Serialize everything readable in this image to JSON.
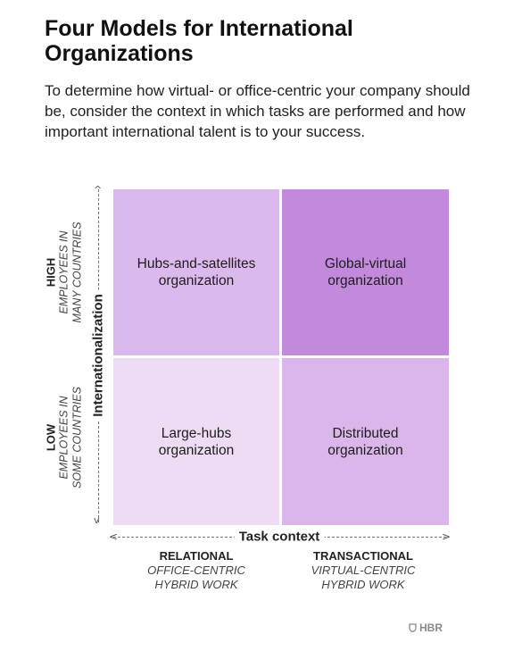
{
  "title": "Four Models for International Organizations",
  "subtitle": "To determine how virtual- or office-centric your company should be, consider the context in which tasks are performed and how important international talent is to your success.",
  "y_axis": {
    "title": "Internationalization",
    "high": {
      "head": "HIGH",
      "line1": "EMPLOYEES IN",
      "line2": "MANY COUNTRIES"
    },
    "low": {
      "head": "LOW",
      "line1": "EMPLOYEES IN",
      "line2": "SOME COUNTRIES"
    }
  },
  "x_axis": {
    "title": "Task context",
    "left": {
      "head": "RELATIONAL",
      "line1": "OFFICE-CENTRIC",
      "line2": "HYBRID WORK"
    },
    "right": {
      "head": "TRANSACTIONAL",
      "line1": "VIRTUAL-CENTRIC",
      "line2": "HYBRID WORK"
    }
  },
  "quadrants": {
    "top_left": {
      "label": "Hubs-and-satellites\norganization",
      "color": "#dcb9ec"
    },
    "top_right": {
      "label": "Global-virtual\norganization",
      "color": "#c389dc"
    },
    "bottom_left": {
      "label": "Large-hubs\norganization",
      "color": "#eedcf5"
    },
    "bottom_right": {
      "label": "Distributed\norganization",
      "color": "#dab6eb"
    }
  },
  "brand": {
    "name": "HBR",
    "icon": "shield-icon"
  }
}
